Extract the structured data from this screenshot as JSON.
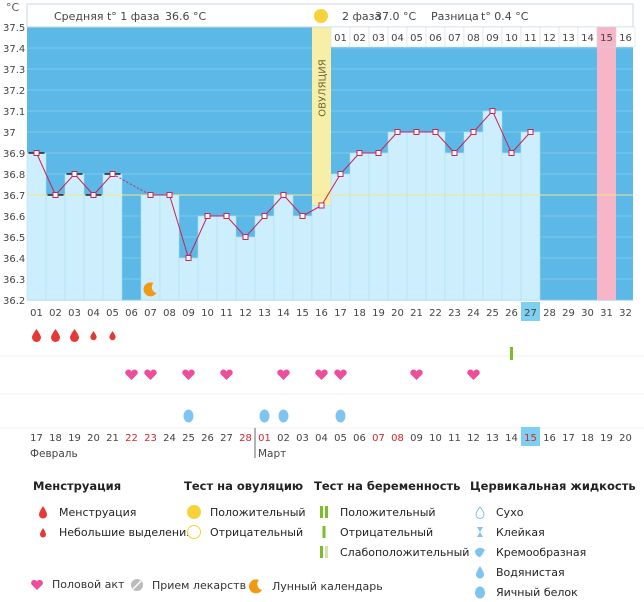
{
  "header": {
    "unit": "°C",
    "phase1_label": "Средняя t° 1 фаза",
    "phase1_value": "36.6 °C",
    "phase2_label": "2 фаза",
    "phase2_value": "37.0 °C",
    "diff_label": "Разница",
    "diff_value": "t° 0.4 °C"
  },
  "ovulation_label": "ОВУЛЯЦИЯ",
  "chart_data": {
    "type": "line",
    "title": "",
    "ylim": [
      36.2,
      37.5
    ],
    "y_ticks": [
      "36.2",
      "36.3",
      "36.4",
      "36.5",
      "36.6",
      "36.7",
      "36.8",
      "36.9",
      "37",
      "37.1",
      "37.2",
      "37.3",
      "37.4",
      "37.5"
    ],
    "cycle_days": [
      "01",
      "02",
      "03",
      "04",
      "05",
      "06",
      "07",
      "08",
      "09",
      "10",
      "11",
      "12",
      "13",
      "14",
      "15",
      "16",
      "17",
      "18",
      "19",
      "20",
      "21",
      "22",
      "23",
      "24",
      "25",
      "26",
      "27",
      "28",
      "29",
      "30",
      "31",
      "32"
    ],
    "dates": [
      "17",
      "18",
      "19",
      "20",
      "21",
      "22",
      "23",
      "24",
      "25",
      "26",
      "27",
      "28",
      "01",
      "02",
      "03",
      "04",
      "05",
      "06",
      "07",
      "08",
      "09",
      "10",
      "11",
      "12",
      "13",
      "14",
      "15",
      "16",
      "17",
      "18",
      "19",
      "20"
    ],
    "red_dates": [
      5,
      6,
      11,
      12,
      18,
      19,
      26
    ],
    "month_labels": [
      {
        "day": 1,
        "text": "Февраль"
      },
      {
        "day": 13,
        "text": "Март"
      }
    ],
    "phase2_header_days": [
      "01",
      "02",
      "03",
      "04",
      "05",
      "06",
      "07",
      "08",
      "09",
      "10",
      "11",
      "12",
      "13",
      "14",
      "15",
      "16"
    ],
    "temperatures": [
      36.9,
      36.7,
      36.8,
      36.7,
      36.8,
      null,
      36.7,
      36.7,
      36.4,
      36.6,
      36.6,
      36.5,
      36.6,
      36.7,
      36.6,
      36.65,
      36.8,
      36.9,
      36.9,
      37.0,
      37.0,
      37.0,
      36.9,
      37.0,
      37.1,
      36.9,
      37.0
    ],
    "excluded_days": [
      1,
      2,
      3,
      4,
      5
    ],
    "coverline": 36.7,
    "ovulation_day": 16,
    "today_day": 27,
    "expected_period_day": 31,
    "lunar_day": 7,
    "menstruation": [
      {
        "day": 1,
        "type": "heavy"
      },
      {
        "day": 2,
        "type": "heavy"
      },
      {
        "day": 3,
        "type": "heavy"
      },
      {
        "day": 4,
        "type": "light"
      },
      {
        "day": 5,
        "type": "light"
      }
    ],
    "ovulation_test": [
      {
        "day": 26,
        "result": "positive"
      }
    ],
    "intercourse_days": [
      6,
      7,
      9,
      11,
      14,
      16,
      17,
      21,
      24
    ],
    "cervical_fluid": [
      {
        "day": 9,
        "type": "egg-white"
      },
      {
        "day": 13,
        "type": "egg-white"
      },
      {
        "day": 14,
        "type": "egg-white"
      },
      {
        "day": 17,
        "type": "egg-white"
      }
    ]
  },
  "legend": {
    "menstruation": {
      "title": "Менструация",
      "items": [
        "Менструация",
        "Небольшие выделения"
      ]
    },
    "ovulation_test": {
      "title": "Тест на овуляцию",
      "items": [
        "Положительный",
        "Отрицательный"
      ]
    },
    "pregnancy_test": {
      "title": "Тест на беременность",
      "items": [
        "Положительный",
        "Отрицательный",
        "Слабоположительный"
      ]
    },
    "cervical": {
      "title": "Цервикальная жидкость",
      "items": [
        "Сухо",
        "Клейкая",
        "Кремообразная",
        "Водянистая",
        "Яичный белок"
      ]
    }
  },
  "bottom_legend": {
    "intercourse": "Половой акт",
    "medication": "Прием лекарств",
    "lunar": "Лунный календарь"
  },
  "colors": {
    "phase1": "#5cb8e6",
    "phase2_bg": "#5cb8e6",
    "column": "#cdeefc",
    "line": "#cc2255",
    "ovulation": "#f7eea7",
    "period": "#f7b5c8",
    "coverline": "#f0e68c",
    "menstruation": "#e53935",
    "heart": "#ee4d9b",
    "drop": "#7ec4ee",
    "moon": "#f09a14",
    "sun": "#f8d23a",
    "test_positive": "#7cbe2a",
    "highlight": "#7ed0f0"
  }
}
